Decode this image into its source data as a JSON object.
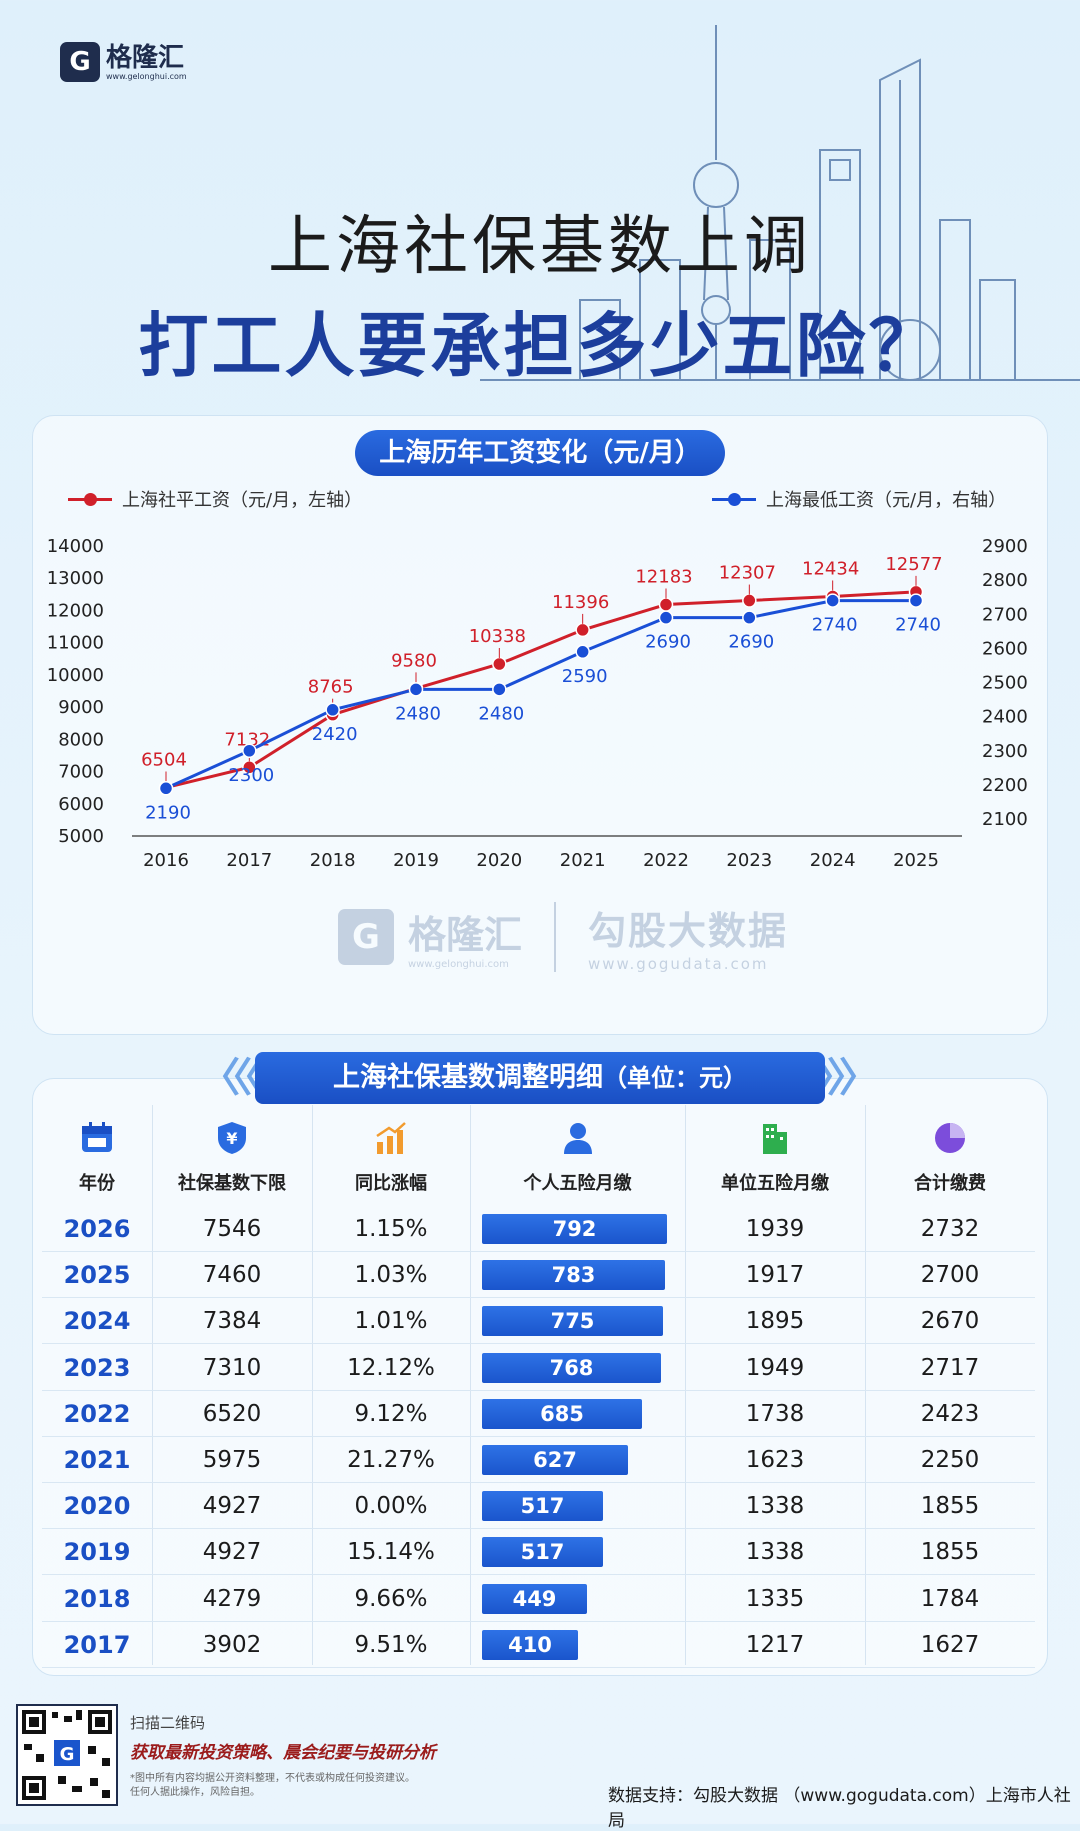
{
  "brand": {
    "name": "格隆汇",
    "url": "www.gelonghui.com",
    "mark": "G"
  },
  "title": {
    "line1": "上海社保基数上调",
    "line2": "打工人要承担多少五险？"
  },
  "chart_section_title": "上海历年工资变化（元/月）",
  "watermark": {
    "brand": "格隆汇",
    "brand_url": "www.gelonghui.com",
    "data": "勾股大数据",
    "data_url": "www.gogudata.com"
  },
  "chart_data": {
    "type": "line",
    "x": [
      "2016",
      "2017",
      "2018",
      "2019",
      "2020",
      "2021",
      "2022",
      "2023",
      "2024",
      "2025"
    ],
    "series": [
      {
        "name": "上海社平工资（元/月，左轴）",
        "axis": "left",
        "color": "#d0202a",
        "values": [
          6504,
          7132,
          8765,
          9580,
          10338,
          11396,
          12183,
          12307,
          12434,
          12577
        ]
      },
      {
        "name": "上海最低工资（元/月，右轴）",
        "axis": "right",
        "color": "#1a4fd6",
        "values": [
          2190,
          2300,
          2420,
          2480,
          2480,
          2590,
          2690,
          2690,
          2740,
          2740
        ]
      }
    ],
    "ylim_left": [
      5000,
      14000
    ],
    "yticks_left": [
      "14000",
      "13000",
      "12000",
      "11000",
      "10000",
      "9000",
      "8000",
      "7000",
      "6000",
      "5000"
    ],
    "ylim_right": [
      2100,
      2900
    ],
    "yticks_right": [
      "2900",
      "2800",
      "2700",
      "2600",
      "2500",
      "2400",
      "2300",
      "2200",
      "2100"
    ],
    "legend": "top"
  },
  "table": {
    "title": "上海社保基数调整明细",
    "unit": "（单位：元）",
    "headers": [
      "年份",
      "社保基数下限",
      "同比涨幅",
      "个人五险月缴",
      "单位五险月缴",
      "合计缴费"
    ],
    "rows": [
      {
        "year": "2026",
        "base": "7546",
        "yoy": "1.15%",
        "personal": "792",
        "personal_value": 792,
        "company": "1939",
        "total": "2732"
      },
      {
        "year": "2025",
        "base": "7460",
        "yoy": "1.03%",
        "personal": "783",
        "personal_value": 783,
        "company": "1917",
        "total": "2700"
      },
      {
        "year": "2024",
        "base": "7384",
        "yoy": "1.01%",
        "personal": "775",
        "personal_value": 775,
        "company": "1895",
        "total": "2670"
      },
      {
        "year": "2023",
        "base": "7310",
        "yoy": "12.12%",
        "personal": "768",
        "personal_value": 768,
        "company": "1949",
        "total": "2717"
      },
      {
        "year": "2022",
        "base": "6520",
        "yoy": "9.12%",
        "personal": "685",
        "personal_value": 685,
        "company": "1738",
        "total": "2423"
      },
      {
        "year": "2021",
        "base": "5975",
        "yoy": "21.27%",
        "personal": "627",
        "personal_value": 627,
        "company": "1623",
        "total": "2250"
      },
      {
        "year": "2020",
        "base": "4927",
        "yoy": "0.00%",
        "personal": "517",
        "personal_value": 517,
        "company": "1338",
        "total": "1855"
      },
      {
        "year": "2019",
        "base": "4927",
        "yoy": "15.14%",
        "personal": "517",
        "personal_value": 517,
        "company": "1338",
        "total": "1855"
      },
      {
        "year": "2018",
        "base": "4279",
        "yoy": "9.66%",
        "personal": "449",
        "personal_value": 449,
        "company": "1335",
        "total": "1784"
      },
      {
        "year": "2017",
        "base": "3902",
        "yoy": "9.51%",
        "personal": "410",
        "personal_value": 410,
        "company": "1217",
        "total": "1627"
      }
    ]
  },
  "footer": {
    "scan": "扫描二维码",
    "promo": "获取最新投资策略、晨会纪要与投研分析",
    "disclaimer1": "*图中所有内容均据公开资料整理，不代表或构成任何投资建议。",
    "disclaimer2": "任何人据此操作，风险自担。",
    "source": "数据支持：勾股大数据 （www.gogudata.com）上海市人社局"
  },
  "colors": {
    "primary_blue": "#1a4fc4",
    "red": "#d0202a",
    "navy": "#1f2d4d"
  }
}
